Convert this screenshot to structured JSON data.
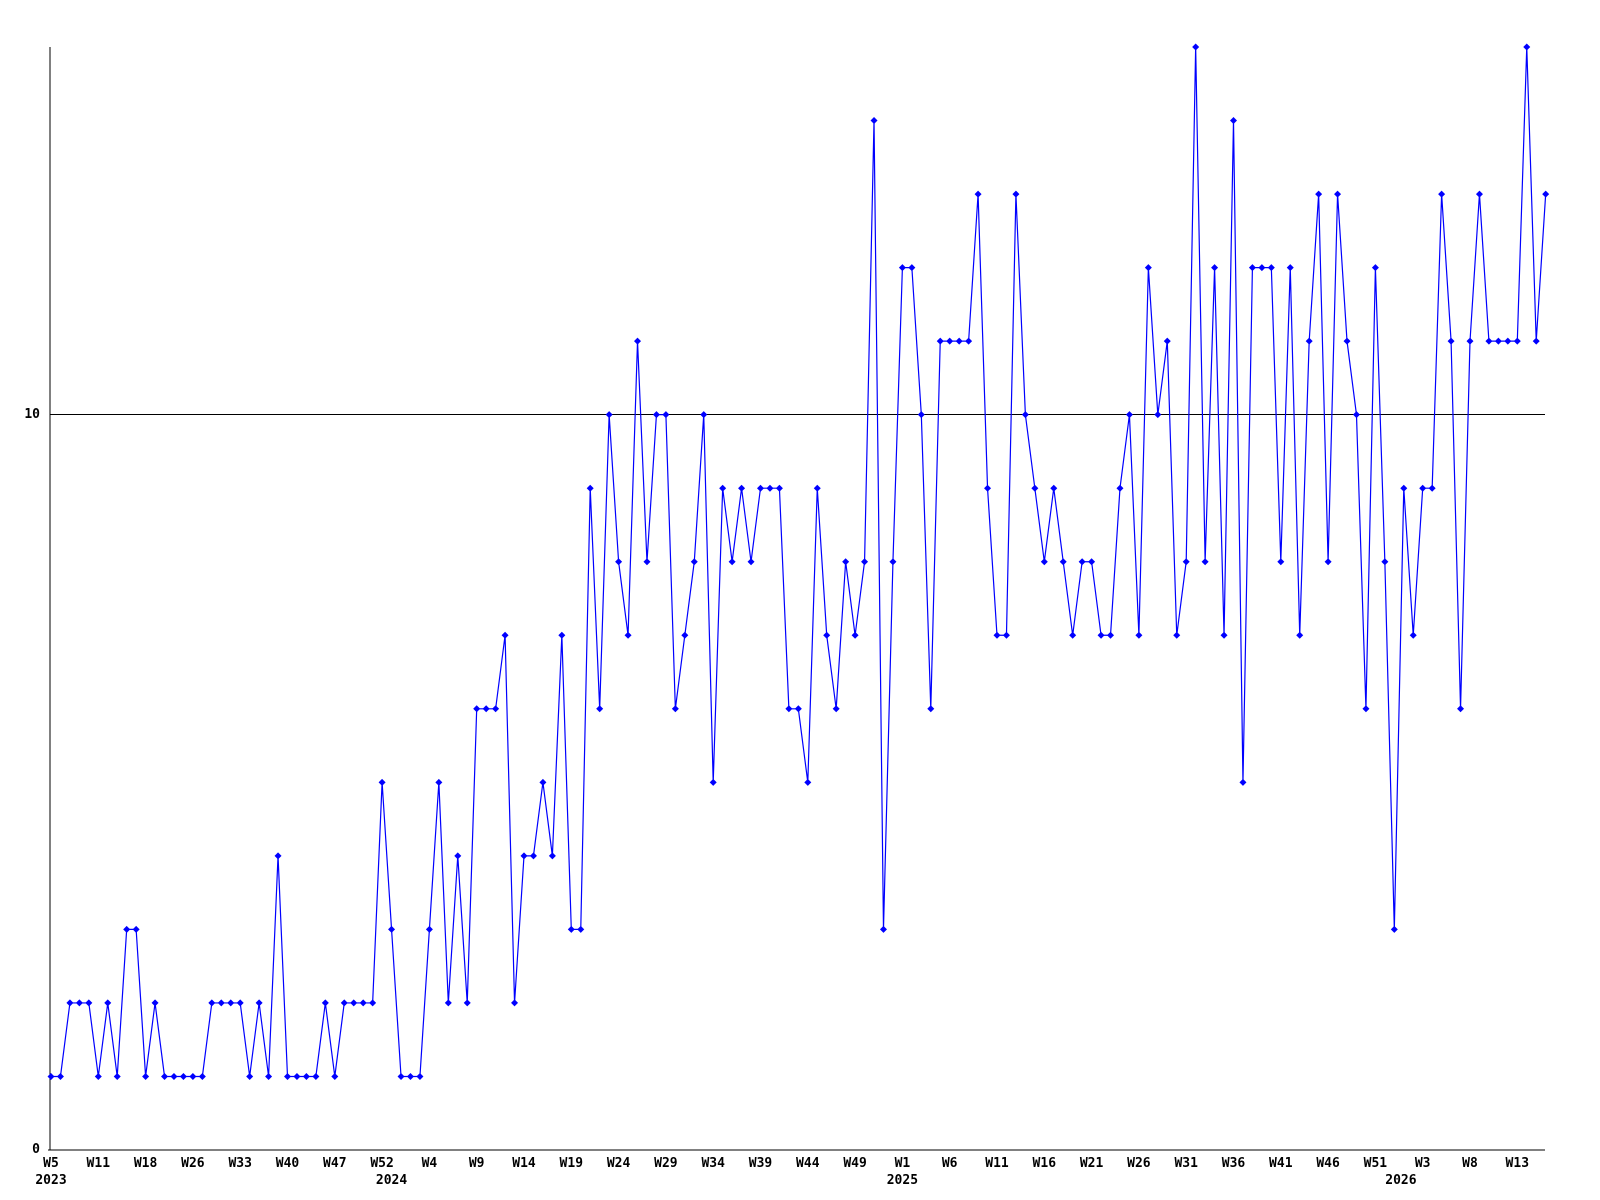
{
  "chart_data": {
    "type": "line",
    "title": "",
    "xlabel": "",
    "ylabel": "",
    "grid": false,
    "legend": "none",
    "ylim": [
      0,
      15
    ],
    "reference_line_value": 10,
    "y_axis_ticks": [
      {
        "value": 0,
        "label": "0"
      },
      {
        "value": 10,
        "label": "10"
      }
    ],
    "x_tick_labels": [
      {
        "i": 0,
        "label": "W5"
      },
      {
        "i": 5,
        "label": "W11"
      },
      {
        "i": 10,
        "label": "W18"
      },
      {
        "i": 15,
        "label": "W26"
      },
      {
        "i": 20,
        "label": "W33"
      },
      {
        "i": 25,
        "label": "W40"
      },
      {
        "i": 30,
        "label": "W47"
      },
      {
        "i": 35,
        "label": "W52"
      },
      {
        "i": 40,
        "label": "W4"
      },
      {
        "i": 45,
        "label": "W9"
      },
      {
        "i": 50,
        "label": "W14"
      },
      {
        "i": 55,
        "label": "W19"
      },
      {
        "i": 60,
        "label": "W24"
      },
      {
        "i": 65,
        "label": "W29"
      },
      {
        "i": 70,
        "label": "W34"
      },
      {
        "i": 75,
        "label": "W39"
      },
      {
        "i": 80,
        "label": "W44"
      },
      {
        "i": 85,
        "label": "W49"
      },
      {
        "i": 90,
        "label": "W1"
      },
      {
        "i": 95,
        "label": "W6"
      },
      {
        "i": 100,
        "label": "W11"
      },
      {
        "i": 105,
        "label": "W16"
      },
      {
        "i": 110,
        "label": "W21"
      },
      {
        "i": 115,
        "label": "W26"
      },
      {
        "i": 120,
        "label": "W31"
      },
      {
        "i": 125,
        "label": "W36"
      },
      {
        "i": 130,
        "label": "W41"
      },
      {
        "i": 135,
        "label": "W46"
      },
      {
        "i": 140,
        "label": "W51"
      },
      {
        "i": 145,
        "label": "W3"
      },
      {
        "i": 150,
        "label": "W8"
      },
      {
        "i": 155,
        "label": "W13"
      }
    ],
    "year_labels": [
      {
        "i": 0,
        "label": "2023"
      },
      {
        "i": 36,
        "label": "2024"
      },
      {
        "i": 90,
        "label": "2025"
      },
      {
        "i": 142.7,
        "label": "2026"
      }
    ],
    "series": [
      {
        "name": "weekly-values",
        "color": "#0000ff",
        "marker": "diamond",
        "values": [
          1,
          1,
          2,
          2,
          2,
          1,
          2,
          1,
          3,
          3,
          1,
          2,
          1,
          1,
          1,
          1,
          1,
          2,
          2,
          2,
          2,
          1,
          2,
          1,
          4,
          1,
          1,
          1,
          1,
          2,
          1,
          2,
          2,
          2,
          2,
          5,
          3,
          1,
          1,
          1,
          3,
          5,
          2,
          4,
          2,
          6,
          6,
          6,
          7,
          2,
          4,
          4,
          5,
          4,
          7,
          3,
          3,
          9,
          6,
          10,
          8,
          7,
          11,
          8,
          10,
          10,
          6,
          7,
          8,
          10,
          5,
          9,
          8,
          9,
          8,
          9,
          9,
          9,
          6,
          6,
          5,
          9,
          7,
          6,
          8,
          7,
          8,
          14,
          3,
          8,
          12,
          12,
          10,
          6,
          11,
          11,
          11,
          11,
          13,
          9,
          7,
          7,
          13,
          10,
          9,
          8,
          9,
          8,
          7,
          8,
          8,
          7,
          7,
          9,
          10,
          7,
          12,
          10,
          11,
          7,
          8,
          15,
          8,
          12,
          7,
          14,
          5,
          12,
          12,
          12,
          8,
          12,
          7,
          11,
          13,
          8,
          13,
          11,
          10,
          6,
          12,
          8,
          3,
          9,
          7,
          9,
          9,
          13,
          11,
          6,
          11,
          13,
          11,
          11,
          11,
          11,
          15,
          11,
          13
        ]
      }
    ]
  },
  "colors": {
    "background": "#ffffff",
    "axis": "#000000",
    "series": "#0000ff",
    "text": "#000000"
  }
}
